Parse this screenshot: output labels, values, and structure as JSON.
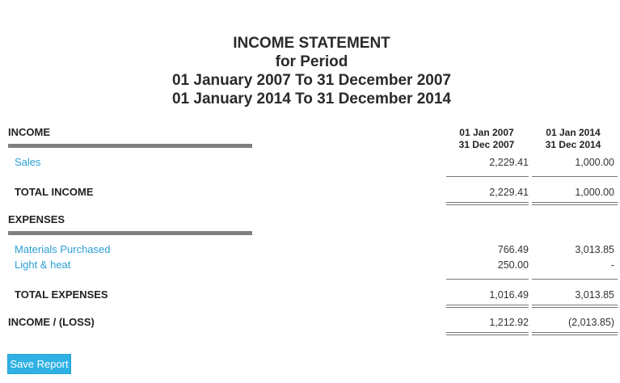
{
  "report": {
    "title_line1": "INCOME STATEMENT",
    "title_line2": "for Period",
    "title_line3": "01 January 2007 To 31 December 2007",
    "title_line4": "01 January 2014 To 31 December 2014"
  },
  "columns": {
    "col1_line1": "01 Jan 2007",
    "col1_line2": "31 Dec 2007",
    "col2_line1": "01 Jan 2014",
    "col2_line2": "31 Dec 2014"
  },
  "income": {
    "heading": "INCOME",
    "rows": [
      {
        "label": "Sales",
        "v1": "2,229.41",
        "v2": "1,000.00"
      }
    ],
    "total_label": "TOTAL INCOME",
    "total_v1": "2,229.41",
    "total_v2": "1,000.00"
  },
  "expenses": {
    "heading": "EXPENSES",
    "rows": [
      {
        "label": "Materials Purchased",
        "v1": "766.49",
        "v2": "3,013.85"
      },
      {
        "label": "Light & heat",
        "v1": "250.00",
        "v2": "-"
      }
    ],
    "total_label": "TOTAL EXPENSES",
    "total_v1": "1,016.49",
    "total_v2": "3,013.85"
  },
  "net": {
    "label": "INCOME / (LOSS)",
    "v1": "1,212.92",
    "v2": "(2,013.85)"
  },
  "actions": {
    "save_label": "Save Report"
  },
  "colors": {
    "link": "#2a9fd6",
    "button_bg": "#2fb1e3",
    "section_bar": "#7f7f7f"
  }
}
